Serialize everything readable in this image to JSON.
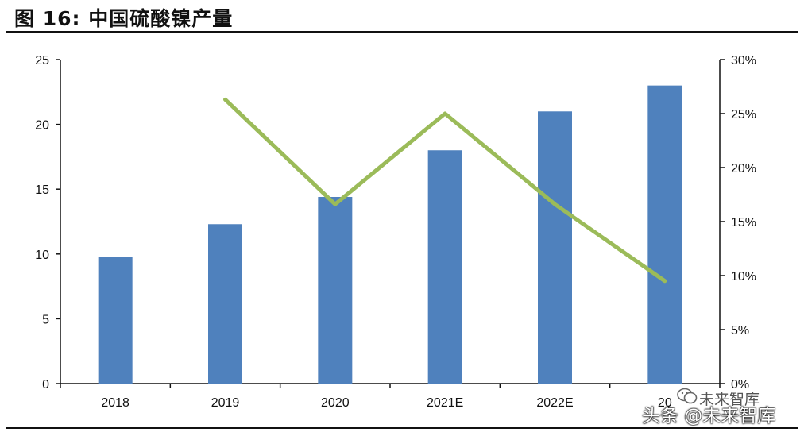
{
  "figure": {
    "title": "图 16:  中国硫酸镍产量"
  },
  "watermark": {
    "line1": "未来智库",
    "line2": "头条 @未来智库"
  },
  "chart_data": {
    "type": "bar",
    "categories": [
      "2018",
      "2019",
      "2020",
      "2021E",
      "2022E",
      "2023E"
    ],
    "visible_category_labels": [
      "2018",
      "2019",
      "2020",
      "2021E",
      "2022E",
      "20"
    ],
    "series": [
      {
        "type": "bar",
        "axis": "left",
        "color": "#4f81bd",
        "values": [
          9.8,
          12.3,
          14.4,
          18.0,
          21.0,
          23.0
        ]
      },
      {
        "type": "line",
        "axis": "right",
        "color": "#9bbb59",
        "values": [
          null,
          0.263,
          0.166,
          0.25,
          0.166,
          0.095
        ]
      }
    ],
    "y_left": {
      "min": 0,
      "max": 25,
      "ticks": [
        "0",
        "5",
        "10",
        "15",
        "20",
        "25"
      ]
    },
    "y_right": {
      "min": 0,
      "max": 0.3,
      "ticks": [
        "0%",
        "5%",
        "10%",
        "15%",
        "20%",
        "25%",
        "30%"
      ]
    },
    "grid": false,
    "legend": "none"
  }
}
